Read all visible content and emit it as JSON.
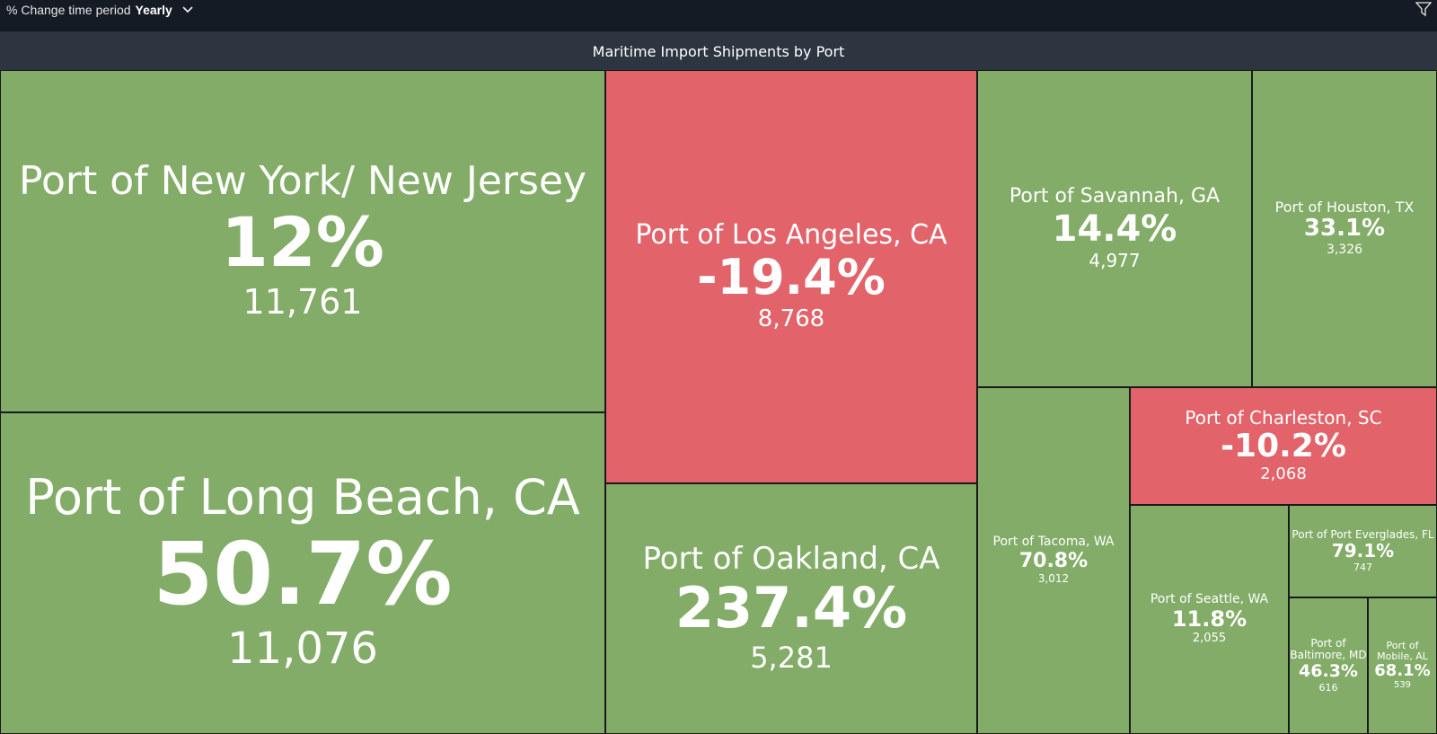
{
  "toolbar": {
    "period_label": "% Change time period",
    "period_value": "Yearly",
    "icons": [
      "chevron-down-icon",
      "filter-icon"
    ]
  },
  "colors": {
    "increase": "#82ac67",
    "decrease": "#e2636a",
    "title_bar": "#2c3540"
  },
  "chart_data": {
    "type": "treemap",
    "title": "Maritime Import Shipments by Port",
    "items": [
      {
        "name": "Port of New York/ New Jersey",
        "change": "12%",
        "count": "11,761"
      },
      {
        "name": "Port of Long Beach, CA",
        "change": "50.7%",
        "count": "11,076"
      },
      {
        "name": "Port of Los Angeles, CA",
        "change": "-19.4%",
        "count": "8,768"
      },
      {
        "name": "Port of Oakland, CA",
        "change": "237.4%",
        "count": "5,281"
      },
      {
        "name": "Port of Savannah, GA",
        "change": "14.4%",
        "count": "4,977"
      },
      {
        "name": "Port of Houston, TX",
        "change": "33.1%",
        "count": "3,326"
      },
      {
        "name": "Port of Tacoma, WA",
        "change": "70.8%",
        "count": "3,012"
      },
      {
        "name": "Port of Charleston, SC",
        "change": "-10.2%",
        "count": "2,068"
      },
      {
        "name": "Port of Seattle, WA",
        "change": "11.8%",
        "count": "2,055"
      },
      {
        "name": "Port of Port Everglades, FL",
        "change": "79.1%",
        "count": "747"
      },
      {
        "name": "Port of Baltimore, MD",
        "change": "46.3%",
        "count": "616"
      },
      {
        "name": "Port of Mobile, AL",
        "change": "68.1%",
        "count": "539"
      }
    ]
  }
}
